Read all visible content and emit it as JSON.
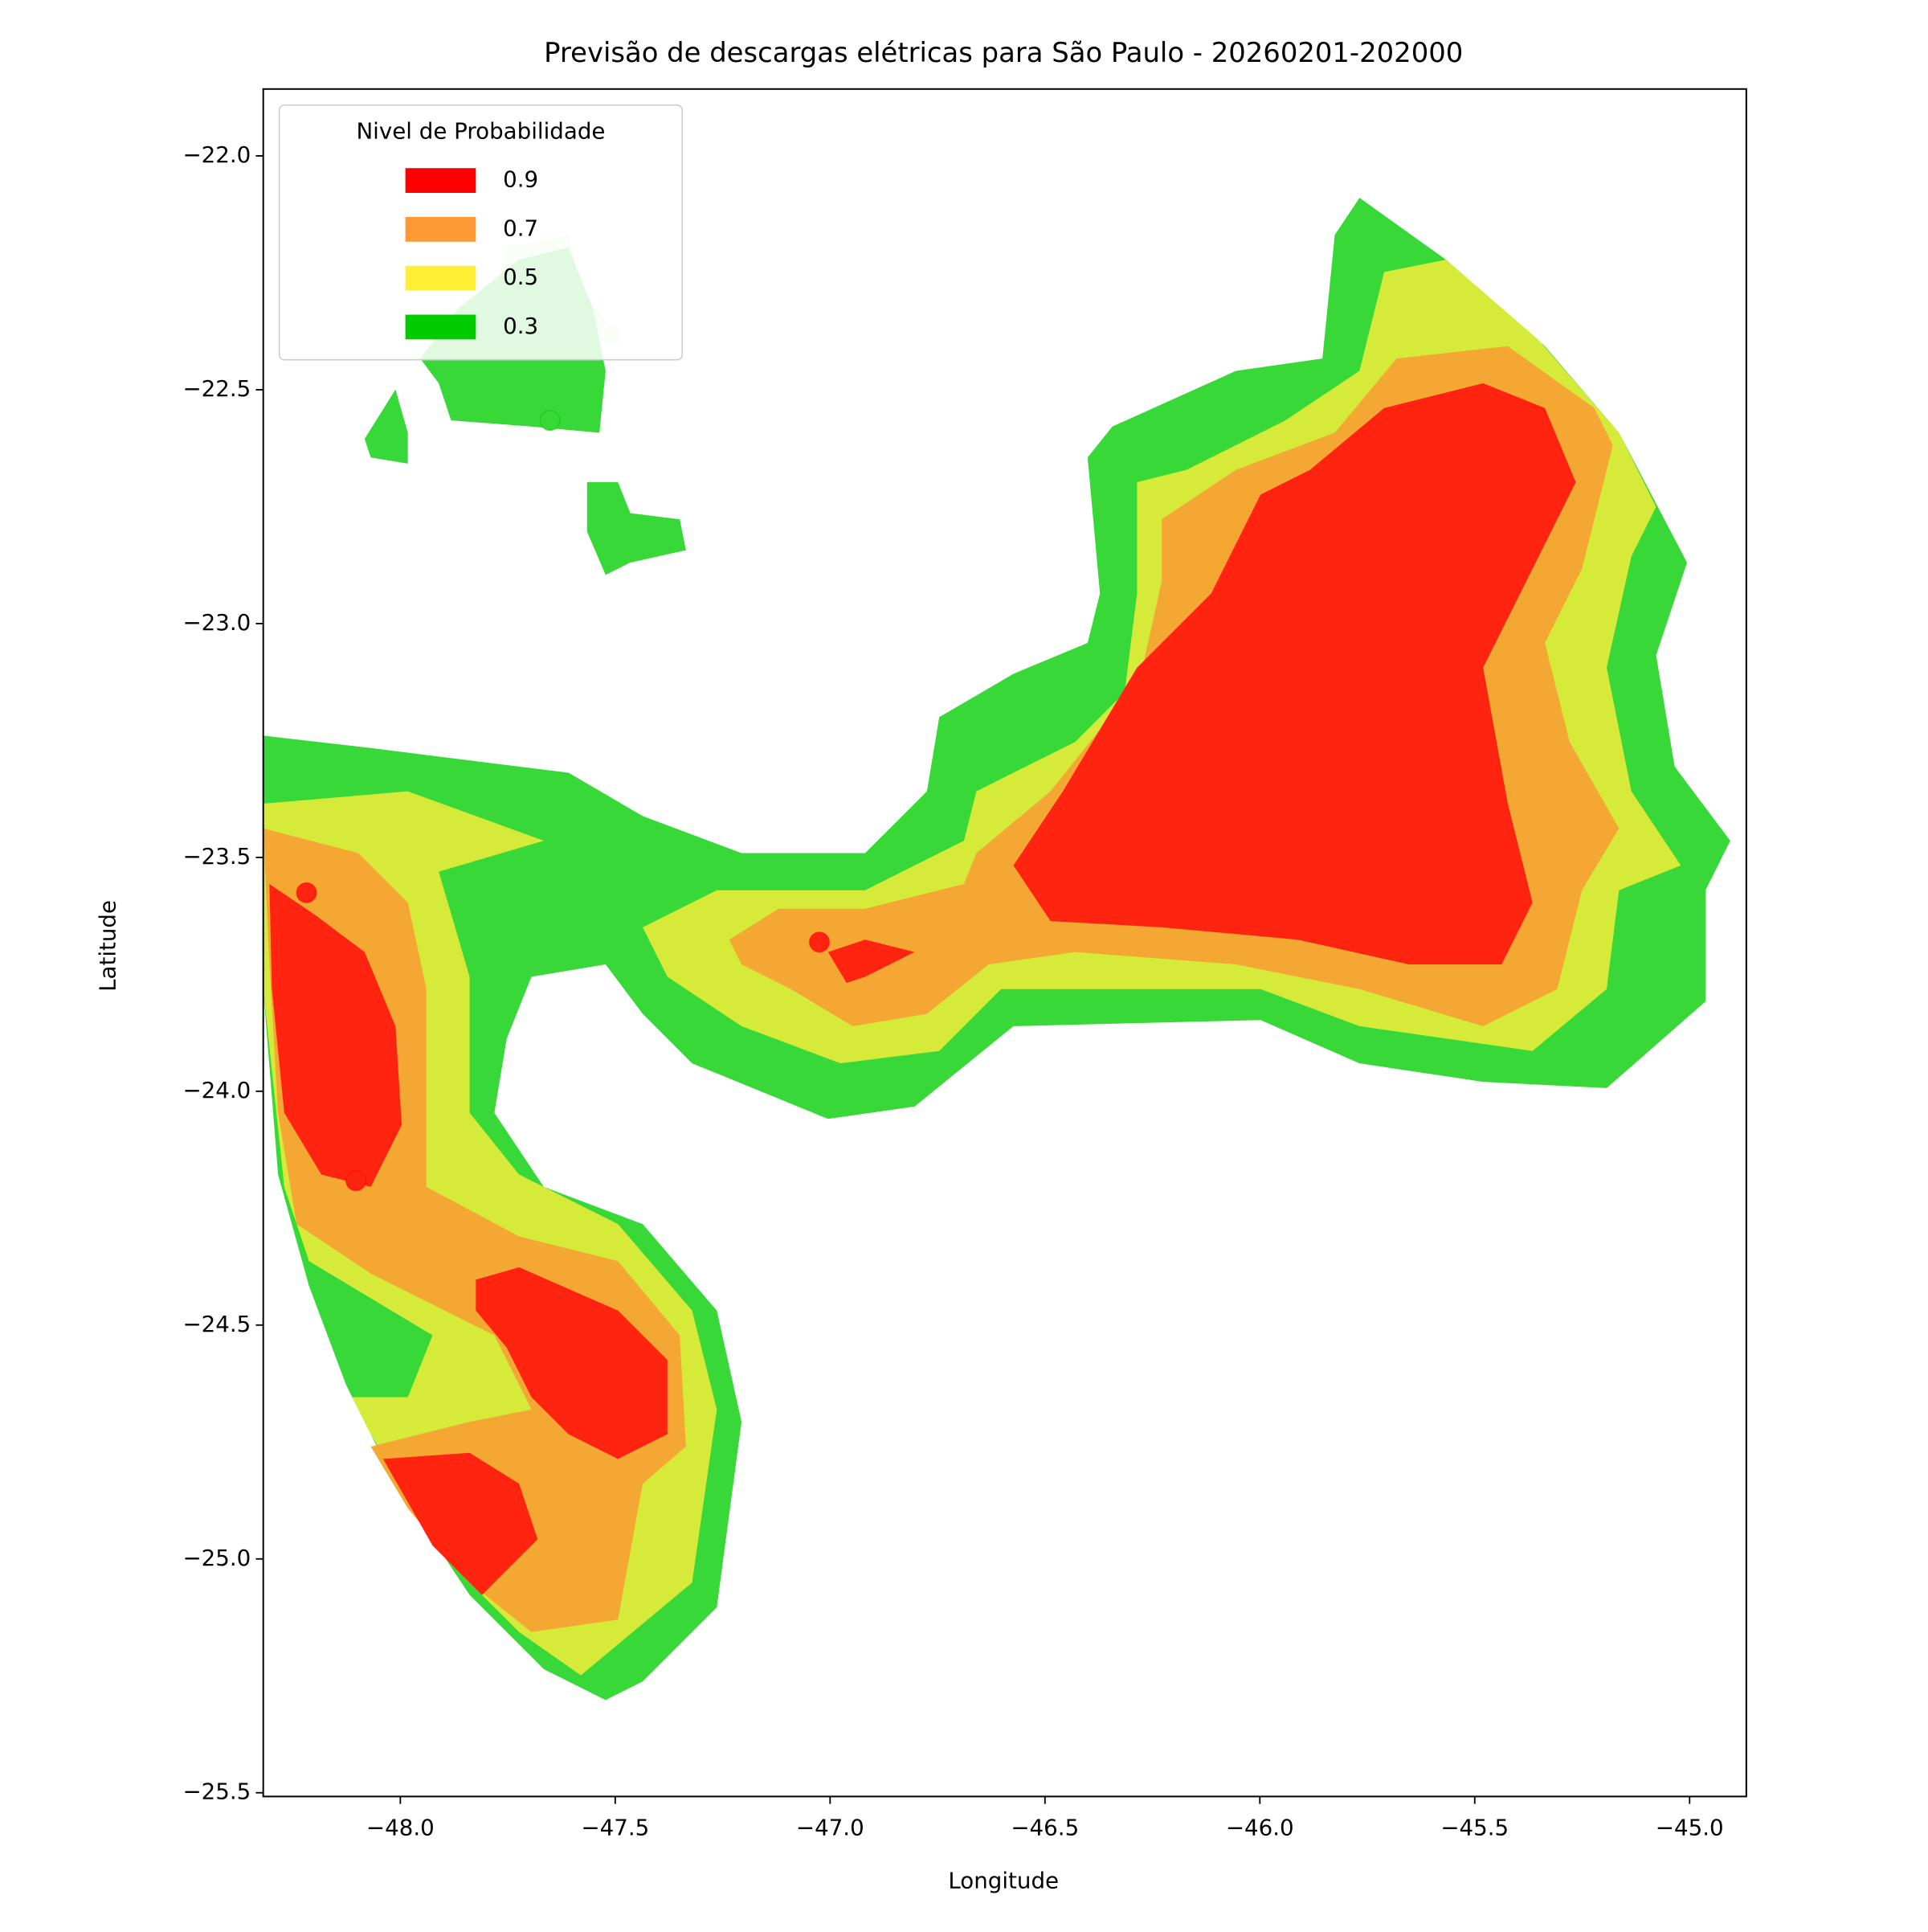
{
  "chart_data": {
    "type": "contour",
    "title": "Previsão de descargas elétricas para São Paulo - 20260201-202000",
    "x_label": "Longitude",
    "y_label": "Latitude",
    "xlim": [
      -48.319,
      -44.868
    ],
    "ylim": [
      -25.508,
      -21.857
    ],
    "xticks": [
      {
        "value": -48.0,
        "label": "−48.0"
      },
      {
        "value": -47.5,
        "label": "−47.5"
      },
      {
        "value": -47.0,
        "label": "−47.0"
      },
      {
        "value": -46.5,
        "label": "−46.5"
      },
      {
        "value": -46.0,
        "label": "−46.0"
      },
      {
        "value": -45.5,
        "label": "−45.5"
      },
      {
        "value": -45.0,
        "label": "−45.0"
      }
    ],
    "yticks": [
      {
        "value": -22.0,
        "label": "−22.0"
      },
      {
        "value": -22.5,
        "label": "−22.5"
      },
      {
        "value": -23.0,
        "label": "−23.0"
      },
      {
        "value": -23.5,
        "label": "−23.5"
      },
      {
        "value": -24.0,
        "label": "−24.0"
      },
      {
        "value": -24.5,
        "label": "−24.5"
      },
      {
        "value": -25.0,
        "label": "−25.0"
      },
      {
        "value": -25.5,
        "label": "−25.5"
      }
    ],
    "legend_title": "Nivel de Probabilidade",
    "legend_position": "upper left",
    "levels": [
      0.9,
      0.7,
      0.5,
      0.3
    ],
    "level_colors": [
      "#ff0000",
      "#ff9933",
      "#ffee33",
      "#00cc00"
    ],
    "fill_colors": [
      "#ff2410",
      "#f5a733",
      "#d6ea3a",
      "#38d838"
    ]
  }
}
